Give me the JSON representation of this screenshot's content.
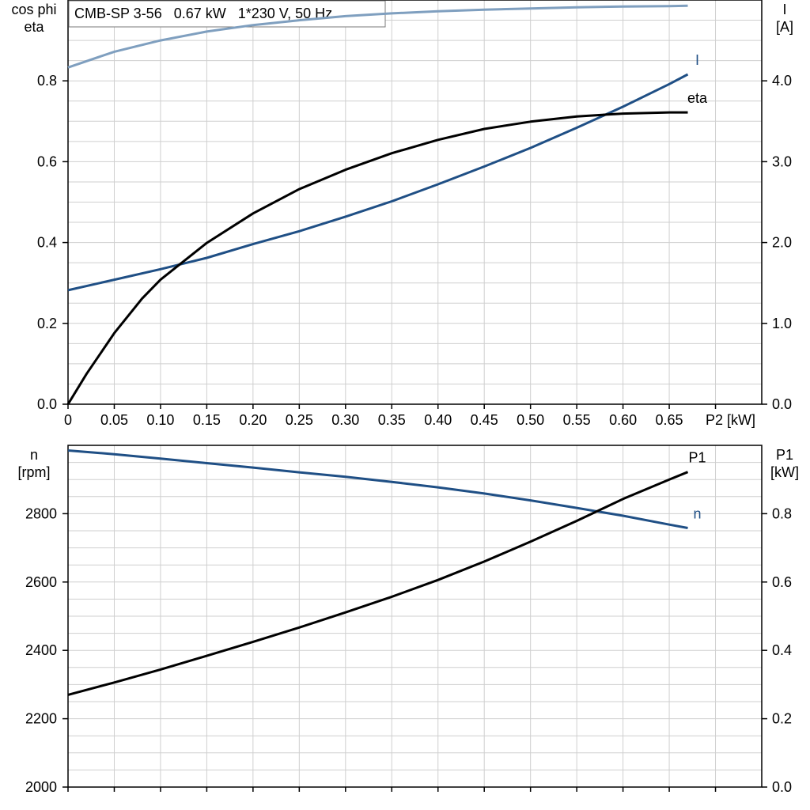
{
  "chart_data": [
    {
      "type": "line",
      "title": "CMB-SP 3-56   0.67 kW   1*230 V, 50 Hz",
      "xlabel": "P2 [kW]",
      "y_left_label": [
        "cos phi",
        "eta"
      ],
      "y_right_label": [
        "I",
        "[A]"
      ],
      "xlim": [
        0,
        0.75
      ],
      "ylim_left": [
        0,
        1.0
      ],
      "ylim_right": [
        0,
        5.0
      ],
      "x_ticks": [
        "0",
        "0.05",
        "0.10",
        "0.15",
        "0.20",
        "0.25",
        "0.30",
        "0.35",
        "0.40",
        "0.45",
        "0.50",
        "0.55",
        "0.60",
        "0.65"
      ],
      "y_left_ticks": [
        "0.0",
        "0.2",
        "0.4",
        "0.6",
        "0.8"
      ],
      "y_right_ticks": [
        "0.0",
        "1.0",
        "2.0",
        "3.0",
        "4.0"
      ],
      "grid": true,
      "series": [
        {
          "name": "cos phi",
          "axis": "left",
          "color": "#7f9fbf",
          "x": [
            0,
            0.05,
            0.1,
            0.15,
            0.2,
            0.25,
            0.3,
            0.35,
            0.4,
            0.45,
            0.5,
            0.55,
            0.6,
            0.65,
            0.67
          ],
          "y": [
            0.833,
            0.872,
            0.9,
            0.922,
            0.938,
            0.95,
            0.96,
            0.967,
            0.972,
            0.976,
            0.979,
            0.982,
            0.984,
            0.985,
            0.986
          ]
        },
        {
          "name": "I",
          "axis": "right",
          "color": "#1f4f85",
          "x": [
            0,
            0.05,
            0.1,
            0.15,
            0.2,
            0.25,
            0.3,
            0.35,
            0.4,
            0.45,
            0.5,
            0.55,
            0.6,
            0.65,
            0.67
          ],
          "y": [
            1.41,
            1.54,
            1.67,
            1.81,
            1.98,
            2.14,
            2.32,
            2.51,
            2.72,
            2.94,
            3.17,
            3.42,
            3.68,
            3.96,
            4.08
          ]
        },
        {
          "name": "eta",
          "axis": "left",
          "color": "#000000",
          "x": [
            0,
            0.02,
            0.05,
            0.08,
            0.1,
            0.15,
            0.2,
            0.25,
            0.3,
            0.35,
            0.4,
            0.45,
            0.5,
            0.55,
            0.6,
            0.65,
            0.67
          ],
          "y": [
            0.0,
            0.075,
            0.176,
            0.261,
            0.308,
            0.399,
            0.472,
            0.532,
            0.58,
            0.621,
            0.654,
            0.681,
            0.699,
            0.712,
            0.719,
            0.722,
            0.722
          ]
        }
      ]
    },
    {
      "type": "line",
      "xlabel": "",
      "y_left_label": [
        "n",
        "[rpm]"
      ],
      "y_right_label": [
        "P1",
        "[kW]"
      ],
      "xlim": [
        0,
        0.75
      ],
      "ylim_left": [
        2000,
        3000
      ],
      "ylim_right": [
        0,
        1.0
      ],
      "y_left_ticks": [
        "2000",
        "2200",
        "2400",
        "2600",
        "2800"
      ],
      "y_right_ticks": [
        "0.0",
        "0.2",
        "0.4",
        "0.6",
        "0.8"
      ],
      "grid": true,
      "series": [
        {
          "name": "n",
          "axis": "left",
          "color": "#1f4f85",
          "x": [
            0,
            0.05,
            0.1,
            0.15,
            0.2,
            0.25,
            0.3,
            0.35,
            0.4,
            0.45,
            0.5,
            0.55,
            0.6,
            0.65,
            0.67
          ],
          "y": [
            2985,
            2974,
            2961,
            2948,
            2935,
            2921,
            2908,
            2893,
            2877,
            2859,
            2839,
            2817,
            2794,
            2768,
            2758
          ]
        },
        {
          "name": "P1",
          "axis": "right",
          "color": "#000000",
          "x": [
            0,
            0.05,
            0.1,
            0.15,
            0.2,
            0.25,
            0.3,
            0.35,
            0.4,
            0.45,
            0.5,
            0.55,
            0.6,
            0.65,
            0.67
          ],
          "y": [
            0.27,
            0.306,
            0.344,
            0.384,
            0.425,
            0.467,
            0.511,
            0.557,
            0.606,
            0.66,
            0.718,
            0.779,
            0.843,
            0.9,
            0.922
          ]
        }
      ]
    }
  ]
}
